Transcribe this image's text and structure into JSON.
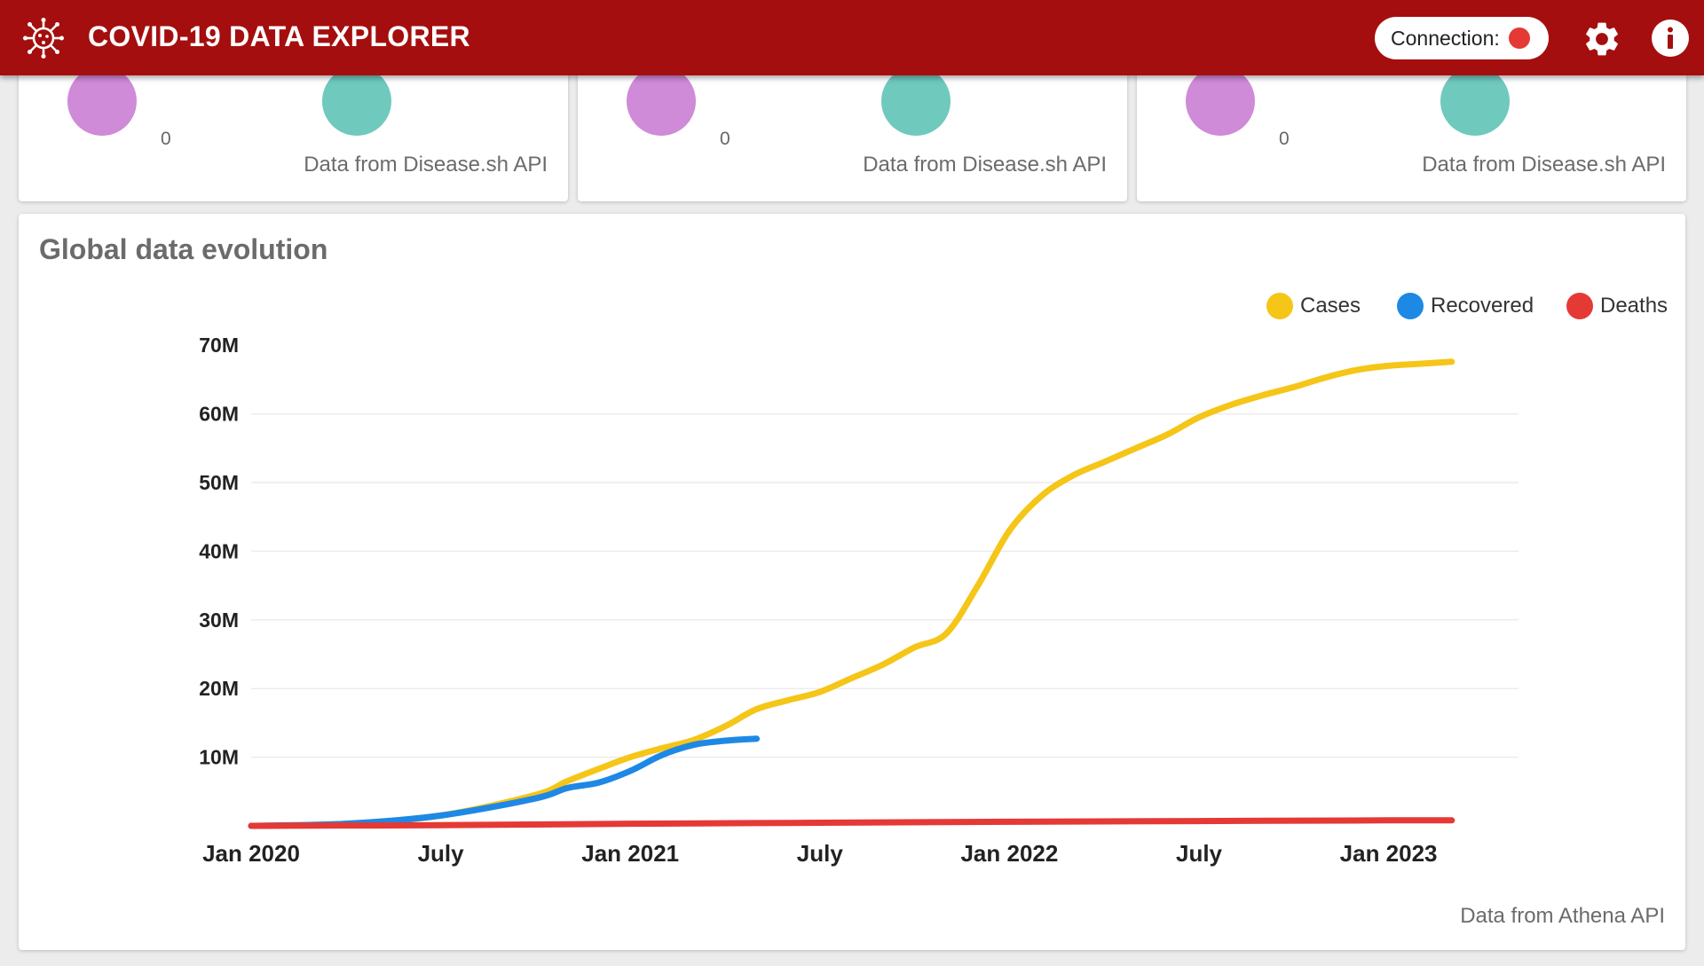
{
  "header": {
    "title": "COVID-19 DATA EXPLORER",
    "connection_label": "Connection:",
    "connection_status_color": "#e53935",
    "logo_icon": "virus-icon",
    "settings_icon": "gear-icon",
    "info_icon": "info-icon"
  },
  "summary_cards": [
    {
      "value_label": "0",
      "source": "Data from Disease.sh API"
    },
    {
      "value_label": "0",
      "source": "Data from Disease.sh API"
    },
    {
      "value_label": "0",
      "source": "Data from Disease.sh API"
    }
  ],
  "colors": {
    "purple_blob": "#cf8ad8",
    "teal_blob": "#6fc9bd",
    "brand": "#a50e0e"
  },
  "chart_card": {
    "title": "Global data evolution",
    "source": "Data from Athena API"
  },
  "chart_data": {
    "type": "line",
    "title": "Global data evolution",
    "xlabel": "",
    "ylabel": "",
    "x_ticks": [
      "Jan 2020",
      "July",
      "Jan 2021",
      "July",
      "Jan 2022",
      "July",
      "Jan 2023"
    ],
    "y_ticks": [
      "10M",
      "20M",
      "30M",
      "40M",
      "50M",
      "60M",
      "70M"
    ],
    "ylim": [
      0,
      70000000
    ],
    "xlim": [
      "2020-01",
      "2023-03"
    ],
    "grid": true,
    "legend_position": "top-right",
    "series": [
      {
        "name": "Cases",
        "color": "#f5c518",
        "x": [
          "2020-01",
          "2020-04",
          "2020-07",
          "2020-10",
          "2020-11",
          "2020-12",
          "2021-01",
          "2021-02",
          "2021-03",
          "2021-04",
          "2021-05",
          "2021-06",
          "2021-07",
          "2021-08",
          "2021-09",
          "2021-10",
          "2021-11",
          "2021-12",
          "2022-01",
          "2022-02",
          "2022-03",
          "2022-04",
          "2022-05",
          "2022-06",
          "2022-07",
          "2022-08",
          "2022-09",
          "2022-10",
          "2022-11",
          "2022-12",
          "2023-01",
          "2023-02",
          "2023-03"
        ],
        "y": [
          0,
          0.3,
          1.5,
          4.5,
          6.5,
          8.3,
          10.0,
          11.3,
          12.5,
          14.5,
          17.0,
          18.3,
          19.5,
          21.5,
          23.5,
          26.0,
          28.0,
          35.0,
          43.0,
          48.0,
          51.0,
          53.0,
          55.0,
          57.0,
          59.5,
          61.3,
          62.7,
          63.9,
          65.3,
          66.4,
          67.0,
          67.3,
          67.6
        ]
      },
      {
        "name": "Recovered",
        "color": "#1e88e5",
        "x": [
          "2020-01",
          "2020-04",
          "2020-07",
          "2020-10",
          "2020-11",
          "2020-12",
          "2021-01",
          "2021-02",
          "2021-03",
          "2021-04",
          "2021-05"
        ],
        "y": [
          0,
          0.3,
          1.5,
          4.0,
          5.5,
          6.3,
          8.0,
          10.3,
          11.8,
          12.4,
          12.7
        ]
      },
      {
        "name": "Deaths",
        "color": "#e53935",
        "x": [
          "2020-01",
          "2020-07",
          "2021-01",
          "2021-07",
          "2022-01",
          "2022-07",
          "2023-01",
          "2023-03"
        ],
        "y": [
          0,
          0.1,
          0.3,
          0.45,
          0.6,
          0.7,
          0.8,
          0.8
        ]
      }
    ],
    "y_unit_multiplier": 1000000
  }
}
